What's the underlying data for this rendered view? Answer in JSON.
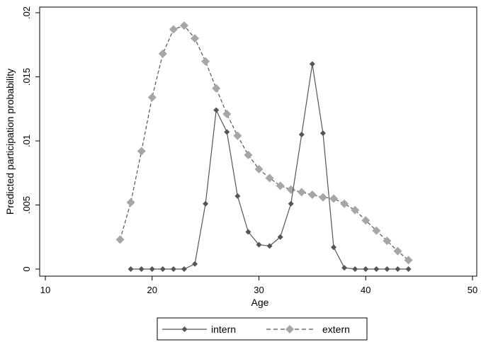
{
  "chart_data": {
    "type": "line",
    "xlabel": "Age",
    "ylabel": "Predicted participation probability",
    "xlim": [
      10,
      50
    ],
    "ylim": [
      0,
      0.02
    ],
    "xticks": [
      10,
      20,
      30,
      40,
      50
    ],
    "yticks": [
      0,
      0.005,
      0.01,
      0.015,
      0.02
    ],
    "xtick_labels": [
      "10",
      "20",
      "30",
      "40",
      "50"
    ],
    "ytick_labels": [
      "0",
      ".005",
      ".01",
      ".015",
      ".02"
    ],
    "grid": false,
    "legend_position": "bottom",
    "series": [
      {
        "name": "intern",
        "color": "#555555",
        "line_style": "solid",
        "marker": "diamond",
        "x": [
          18,
          19,
          20,
          21,
          22,
          23,
          24,
          25,
          26,
          27,
          28,
          29,
          30,
          31,
          32,
          33,
          34,
          35,
          36,
          37,
          38,
          39,
          40,
          41,
          42,
          43,
          44
        ],
        "y": [
          0,
          0,
          0,
          0,
          0,
          0,
          0.0004,
          0.0051,
          0.0124,
          0.0107,
          0.0057,
          0.0029,
          0.0019,
          0.0018,
          0.0025,
          0.0051,
          0.0105,
          0.016,
          0.0106,
          0.0017,
          0.0001,
          0,
          0,
          0,
          0,
          0,
          0
        ]
      },
      {
        "name": "extern",
        "color": "#a6a6a6",
        "line_style": "dashed",
        "marker": "diamond",
        "x": [
          17,
          18,
          19,
          20,
          21,
          22,
          23,
          24,
          25,
          26,
          27,
          28,
          29,
          30,
          31,
          32,
          33,
          34,
          35,
          36,
          37,
          38,
          39,
          40,
          41,
          42,
          43,
          44
        ],
        "y": [
          0.0023,
          0.0052,
          0.0092,
          0.0134,
          0.0168,
          0.0187,
          0.019,
          0.018,
          0.0162,
          0.0141,
          0.0121,
          0.0104,
          0.0089,
          0.0078,
          0.0071,
          0.0065,
          0.0062,
          0.006,
          0.0058,
          0.0056,
          0.0055,
          0.0051,
          0.0046,
          0.0038,
          0.003,
          0.0022,
          0.0014,
          0.0007
        ]
      }
    ]
  }
}
